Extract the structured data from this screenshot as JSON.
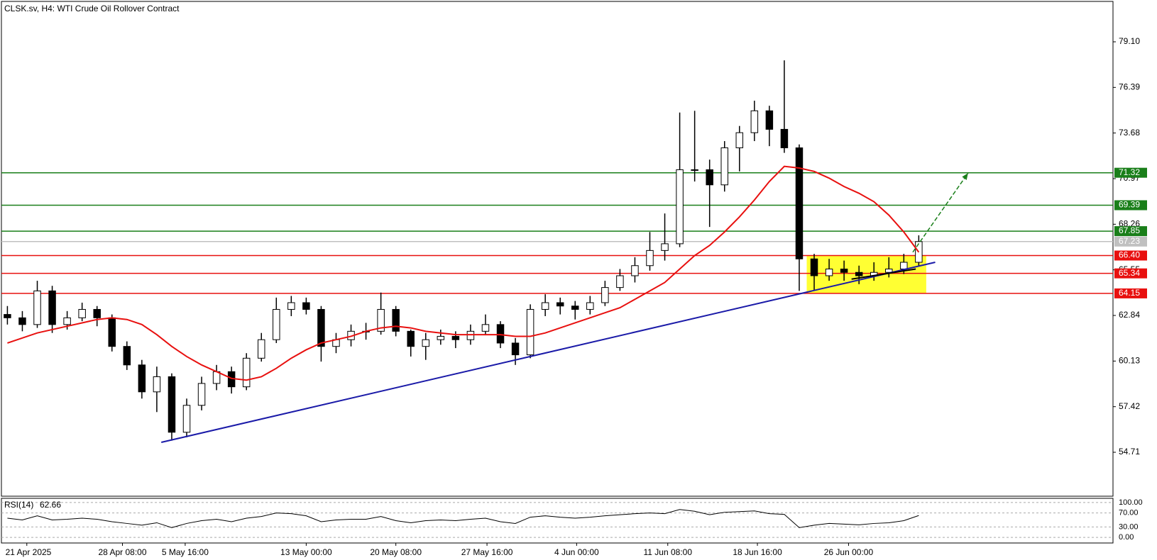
{
  "chart_data": {
    "type": "candlestick",
    "title": "CLSK.sv, H4:  WTI Crude Oil Rollover Contract",
    "xlim": [
      -0.4,
      74
    ],
    "xticks": [
      {
        "value": 1.3,
        "label": "21 Apr 2025"
      },
      {
        "value": 7.7,
        "label": "28 Apr 08:00"
      },
      {
        "value": 11.9,
        "label": "5 May 16:00"
      },
      {
        "value": 20,
        "label": "13 May 00:00"
      },
      {
        "value": 26,
        "label": "20 May 08:00"
      },
      {
        "value": 32.1,
        "label": "27 May 16:00"
      },
      {
        "value": 38.1,
        "label": "4 Jun 00:00"
      },
      {
        "value": 44.2,
        "label": "11 Jun 08:00"
      },
      {
        "value": 50.2,
        "label": "18 Jun 16:00"
      },
      {
        "value": 56.3,
        "label": "26 Jun 00:00"
      }
    ],
    "ylim": [
      52.1,
      81.5
    ],
    "yticks": [
      {
        "value": 79.1,
        "label": "79.10"
      },
      {
        "value": 76.39,
        "label": "76.39"
      },
      {
        "value": 73.68,
        "label": "73.68"
      },
      {
        "value": 70.97,
        "label": "70.97"
      },
      {
        "value": 68.26,
        "label": "68.26"
      },
      {
        "value": 65.55,
        "label": "65.55"
      },
      {
        "value": 62.84,
        "label": "62.84"
      },
      {
        "value": 60.13,
        "label": "60.13"
      },
      {
        "value": 57.42,
        "label": "57.42"
      },
      {
        "value": 54.71,
        "label": "54.71"
      }
    ],
    "open": [
      62.9,
      62.7,
      62.3,
      64.3,
      62.3,
      62.7,
      63.2,
      62.7,
      61.0,
      59.9,
      58.3,
      59.2,
      55.9,
      57.5,
      58.8,
      59.5,
      58.6,
      60.3,
      61.4,
      63.2,
      63.6,
      63.2,
      61.0,
      61.4,
      61.9,
      61.9,
      63.2,
      61.9,
      61.0,
      61.4,
      61.6,
      61.4,
      61.9,
      62.3,
      61.2,
      60.5,
      63.2,
      63.6,
      63.4,
      63.2,
      63.6,
      64.5,
      65.2,
      65.8,
      66.7,
      67.1,
      71.5,
      71.5,
      70.6,
      72.8,
      73.7,
      75.0,
      73.9,
      72.8,
      66.2,
      65.2,
      65.6,
      65.4,
      65.2,
      65.4,
      65.6,
      66.0
    ],
    "high": [
      63.4,
      63.1,
      64.9,
      64.6,
      63.1,
      63.6,
      63.4,
      62.9,
      61.3,
      60.2,
      59.8,
      59.4,
      57.9,
      59.2,
      59.9,
      59.8,
      60.6,
      61.8,
      63.9,
      64.0,
      63.9,
      63.4,
      61.8,
      62.3,
      62.4,
      64.2,
      63.4,
      62.0,
      61.8,
      62.0,
      61.9,
      62.3,
      62.9,
      62.5,
      61.5,
      63.5,
      64.1,
      63.9,
      63.7,
      64.0,
      64.9,
      65.6,
      66.3,
      67.8,
      68.9,
      74.9,
      75.0,
      72.1,
      73.2,
      74.1,
      75.6,
      75.3,
      78.0,
      73.0,
      66.5,
      66.2,
      66.1,
      65.8,
      66.0,
      66.3,
      66.5,
      67.6
    ],
    "low": [
      62.3,
      61.9,
      62.1,
      61.8,
      62.0,
      62.5,
      62.2,
      60.7,
      59.6,
      57.9,
      57.1,
      55.4,
      55.6,
      57.2,
      58.4,
      58.2,
      58.4,
      60.1,
      61.2,
      62.8,
      62.9,
      60.1,
      60.6,
      61.0,
      61.4,
      61.7,
      61.6,
      60.4,
      60.2,
      61.1,
      60.9,
      61.1,
      61.7,
      60.9,
      59.9,
      60.3,
      62.8,
      62.9,
      62.6,
      62.9,
      63.4,
      64.3,
      64.8,
      65.5,
      66.1,
      66.9,
      70.8,
      68.1,
      70.2,
      71.4,
      73.2,
      72.9,
      72.5,
      64.3,
      64.3,
      64.9,
      64.9,
      64.7,
      64.9,
      65.1,
      65.3,
      65.8
    ],
    "close": [
      62.7,
      62.3,
      64.3,
      62.3,
      62.7,
      63.2,
      62.7,
      61.0,
      59.9,
      58.3,
      59.2,
      55.9,
      57.5,
      58.8,
      59.5,
      58.6,
      60.3,
      61.4,
      63.2,
      63.6,
      63.2,
      61.0,
      61.4,
      61.9,
      61.9,
      63.2,
      61.9,
      61.0,
      61.4,
      61.6,
      61.4,
      61.9,
      62.3,
      61.2,
      60.5,
      63.2,
      63.6,
      63.4,
      63.2,
      63.6,
      64.5,
      65.2,
      65.8,
      66.7,
      67.1,
      71.5,
      71.5,
      70.6,
      72.8,
      73.7,
      75.0,
      73.9,
      72.8,
      66.2,
      65.2,
      65.6,
      65.4,
      65.2,
      65.4,
      65.6,
      66.0,
      67.23
    ],
    "ma": {
      "color": "#e8100f",
      "values": [
        61.2,
        61.5,
        61.8,
        62.0,
        62.2,
        62.4,
        62.6,
        62.7,
        62.6,
        62.3,
        61.7,
        61.0,
        60.4,
        59.9,
        59.5,
        59.1,
        59.0,
        59.2,
        59.7,
        60.3,
        60.8,
        61.2,
        61.4,
        61.6,
        61.9,
        62.1,
        62.2,
        62.1,
        61.9,
        61.8,
        61.7,
        61.7,
        61.7,
        61.7,
        61.6,
        61.6,
        61.8,
        62.1,
        62.4,
        62.7,
        63.0,
        63.3,
        63.8,
        64.3,
        64.8,
        65.6,
        66.4,
        67.0,
        67.8,
        68.7,
        69.7,
        70.8,
        71.7,
        71.6,
        71.4,
        71.0,
        70.5,
        70.1,
        69.6,
        68.8,
        67.8,
        66.6
      ]
    },
    "levels": [
      {
        "value": 71.32,
        "label": "71.32",
        "color": "#1a7f1a"
      },
      {
        "value": 69.39,
        "label": "69.39",
        "color": "#1a7f1a"
      },
      {
        "value": 67.85,
        "label": "67.85",
        "color": "#1a7f1a"
      },
      {
        "value": 67.23,
        "label": "67.23",
        "color": "#c0c0c0"
      },
      {
        "value": 66.4,
        "label": "66.40",
        "color": "#e8100f"
      },
      {
        "value": 65.34,
        "label": "65.34",
        "color": "#e8100f"
      },
      {
        "value": 64.15,
        "label": "64.15",
        "color": "#e8100f"
      }
    ],
    "zone": {
      "x": [
        53.5,
        61.5
      ],
      "y": [
        64.15,
        66.4
      ],
      "color": "#ffff33"
    },
    "trendlines": [
      {
        "x": [
          10.3,
          62.1
        ],
        "y": [
          55.3,
          66.0
        ],
        "color": "#1a1aa8"
      },
      {
        "x": [
          56.5,
          60.8
        ],
        "y": [
          65.0,
          65.6
        ],
        "color": "#000000"
      }
    ],
    "arrow": {
      "x": [
        60.6,
        64.3
      ],
      "y": [
        66.6,
        71.3
      ],
      "color": "#1a7f1a"
    },
    "rsi": {
      "label": "RSI(14)",
      "last": 62.66,
      "ylim": [
        -16,
        112
      ],
      "yticks": [
        {
          "value": 100,
          "label": "100.00"
        },
        {
          "value": 70,
          "label": "70.00"
        },
        {
          "value": 30,
          "label": "30.00"
        },
        {
          "value": 0,
          "label": "0.00"
        }
      ],
      "values": [
        55,
        50,
        62,
        50,
        52,
        55,
        52,
        45,
        40,
        35,
        42,
        28,
        40,
        48,
        52,
        45,
        55,
        60,
        70,
        68,
        62,
        45,
        50,
        52,
        52,
        60,
        48,
        42,
        48,
        50,
        48,
        52,
        55,
        45,
        40,
        58,
        62,
        58,
        55,
        58,
        62,
        65,
        68,
        70,
        68,
        80,
        75,
        65,
        72,
        74,
        76,
        68,
        66,
        28,
        35,
        40,
        38,
        36,
        40,
        42,
        48,
        62.66
      ]
    }
  }
}
